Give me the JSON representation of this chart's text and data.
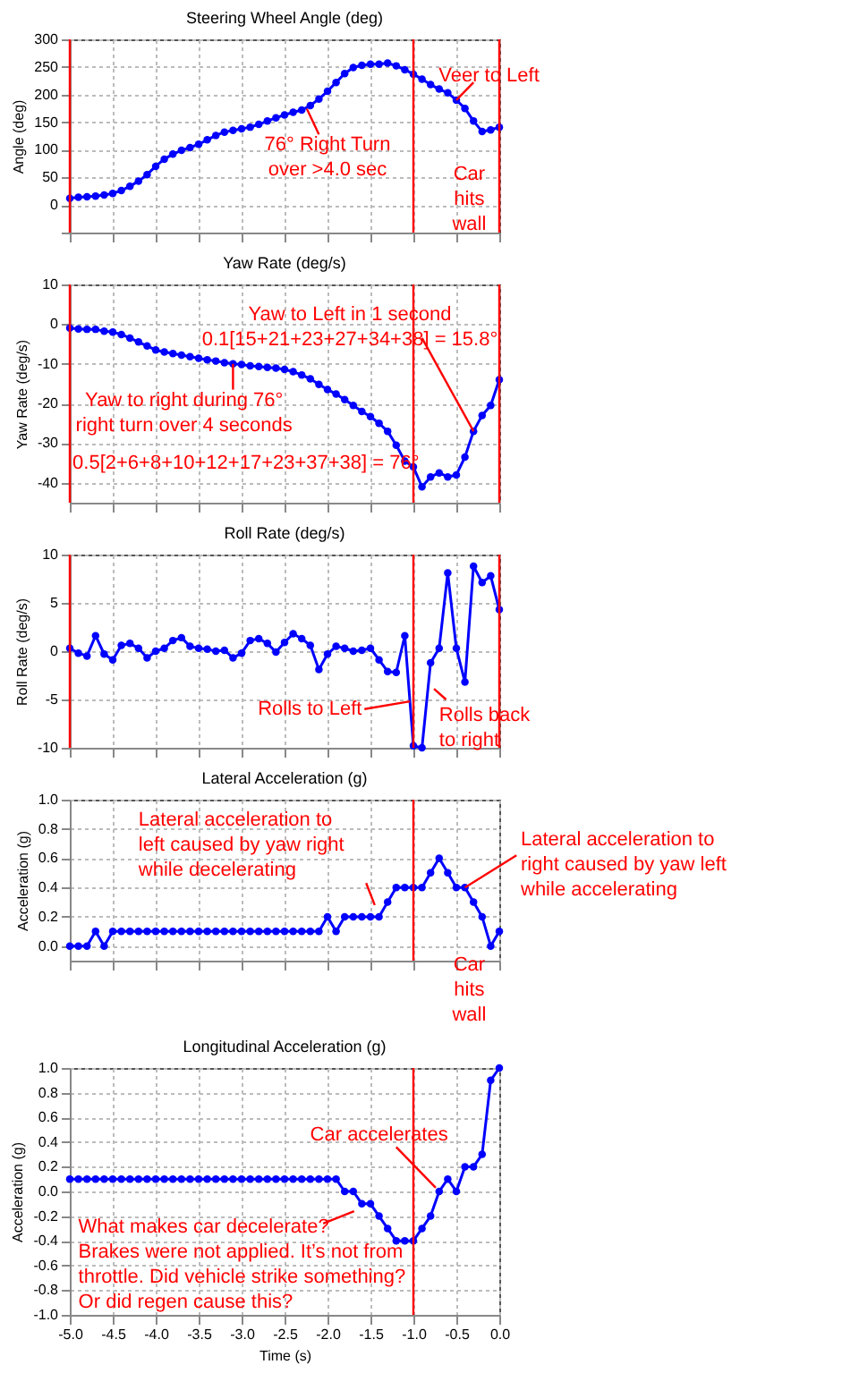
{
  "chart_data": [
    {
      "type": "line",
      "title": "Steering Wheel Angle (deg)",
      "ylabel": "Angle (deg)",
      "x": [
        -5.0,
        -4.9,
        -4.8,
        -4.7,
        -4.6,
        -4.5,
        -4.4,
        -4.3,
        -4.2,
        -4.1,
        -4.0,
        -3.9,
        -3.8,
        -3.7,
        -3.6,
        -3.5,
        -3.4,
        -3.3,
        -3.2,
        -3.1,
        -3.0,
        -2.9,
        -2.8,
        -2.7,
        -2.6,
        -2.5,
        -2.4,
        -2.3,
        -2.2,
        -2.1,
        -2.0,
        -1.9,
        -1.8,
        -1.7,
        -1.6,
        -1.5,
        -1.4,
        -1.3,
        -1.2,
        -1.1,
        -1.0,
        -0.9,
        -0.8,
        -0.7,
        -0.6,
        -0.5,
        -0.4,
        -0.3,
        -0.2,
        -0.1,
        0.0
      ],
      "series": [
        {
          "color": "#0000ff",
          "values": [
            12,
            14,
            15,
            16,
            18,
            21,
            26,
            34,
            43,
            55,
            70,
            83,
            92,
            99,
            104,
            110,
            118,
            126,
            132,
            135,
            138,
            141,
            146,
            152,
            158,
            163,
            168,
            172,
            180,
            192,
            206,
            222,
            238,
            249,
            253,
            255,
            255,
            257,
            252,
            245,
            237,
            228,
            218,
            210,
            203,
            190,
            175,
            152,
            133,
            136,
            141
          ]
        }
      ],
      "xlim": [
        -5,
        0
      ],
      "xticks": [
        -5,
        -4.5,
        -4,
        -3.5,
        -3,
        -2.5,
        -2,
        -1.5,
        -1,
        -0.5,
        0
      ],
      "ylim": [
        -50,
        300
      ],
      "yticks": [
        {
          "value": -50,
          "label": null
        },
        0,
        50,
        100,
        150,
        200,
        250,
        300
      ],
      "grid": true,
      "marker": "circle",
      "line_style": "solid",
      "tick_labels": "y",
      "ref_lines": [
        {
          "axis": "x",
          "value": -5,
          "color": "#ff0000"
        },
        {
          "axis": "x",
          "value": -1,
          "color": "#ff0000"
        },
        {
          "axis": "x",
          "value": 0,
          "color": "#ff0000"
        }
      ],
      "annotations": [
        {
          "text": "76° Right Turn\nover >4.0 sec",
          "x": -2.24,
          "y": 174
        },
        {
          "text": "Veer to Left",
          "x": -0.5,
          "y": 190
        },
        "Car\nhits\nwall"
      ]
    },
    {
      "type": "line",
      "title": "Yaw Rate (deg/s)",
      "ylabel": "Yaw Rate (deg/s)",
      "x": [
        -5.0,
        -4.9,
        -4.8,
        -4.7,
        -4.6,
        -4.5,
        -4.4,
        -4.3,
        -4.2,
        -4.1,
        -4.0,
        -3.9,
        -3.8,
        -3.7,
        -3.6,
        -3.5,
        -3.4,
        -3.3,
        -3.2,
        -3.1,
        -3.0,
        -2.9,
        -2.8,
        -2.7,
        -2.6,
        -2.5,
        -2.4,
        -2.3,
        -2.2,
        -2.1,
        -2.0,
        -1.9,
        -1.8,
        -1.7,
        -1.6,
        -1.5,
        -1.4,
        -1.3,
        -1.2,
        -1.1,
        -1.0,
        -0.9,
        -0.8,
        -0.7,
        -0.6,
        -0.5,
        -0.4,
        -0.3,
        -0.2,
        -0.1,
        0.0
      ],
      "series": [
        {
          "color": "#0000ff",
          "values": [
            -1,
            -1.2,
            -1.3,
            -1.3,
            -1.8,
            -2,
            -2.6,
            -3.5,
            -4.5,
            -5.5,
            -6.5,
            -7,
            -7.4,
            -7.8,
            -8.2,
            -8.6,
            -9,
            -9.3,
            -9.7,
            -10,
            -10.2,
            -10.5,
            -10.7,
            -10.9,
            -11.1,
            -11.4,
            -12,
            -12.8,
            -13.8,
            -15.2,
            -16.5,
            -17.6,
            -19,
            -20.5,
            -22,
            -23.3,
            -25,
            -27,
            -30.5,
            -34.5,
            -36,
            -41,
            -38.5,
            -37.5,
            -38.5,
            -38,
            -33.5,
            -27,
            -23,
            -20.5,
            -14
          ]
        }
      ],
      "xlim": [
        -5,
        0
      ],
      "xticks": [
        -5,
        -4.5,
        -4,
        -3.5,
        -3,
        -2.5,
        -2,
        -1.5,
        -1,
        -0.5,
        0
      ],
      "ylim": [
        -45,
        10
      ],
      "yticks": [
        -40,
        -30,
        -20,
        -10,
        0,
        10
      ],
      "grid": true,
      "marker": "circle",
      "line_style": "solid",
      "tick_labels": "y",
      "ref_lines": [
        {
          "axis": "x",
          "value": -5,
          "color": "#ff0000"
        },
        {
          "axis": "x",
          "value": -1,
          "color": "#ff0000"
        },
        {
          "axis": "x",
          "value": 0,
          "color": "#ff0000"
        }
      ],
      "annotations": [
        {
          "text": "Yaw to Left in 1 second\n0.1[15+21+23+27+34+38] = 15.8°",
          "x": -0.3,
          "y": -27
        },
        {
          "text": "Yaw to right during 76°\nright turn over 4 seconds",
          "x": -3.1,
          "y": -10
        },
        "0.5[2+6+8+10+12+17+23+37+38] = 76°"
      ]
    },
    {
      "type": "line",
      "title": "Roll Rate (deg/s)",
      "ylabel": "Roll Rate (deg/s)",
      "x": [
        -5.0,
        -4.9,
        -4.8,
        -4.7,
        -4.6,
        -4.5,
        -4.4,
        -4.3,
        -4.2,
        -4.1,
        -4.0,
        -3.9,
        -3.8,
        -3.7,
        -3.6,
        -3.5,
        -3.4,
        -3.3,
        -3.2,
        -3.1,
        -3.0,
        -2.9,
        -2.8,
        -2.7,
        -2.6,
        -2.5,
        -2.4,
        -2.3,
        -2.2,
        -2.1,
        -2.0,
        -1.9,
        -1.8,
        -1.7,
        -1.6,
        -1.5,
        -1.4,
        -1.3,
        -1.2,
        -1.1,
        -1.0,
        -0.9,
        -0.8,
        -0.7,
        -0.6,
        -0.5,
        -0.4,
        -0.3,
        -0.2,
        -0.1,
        0.0
      ],
      "series": [
        {
          "color": "#0000ff",
          "values": [
            0.3,
            -0.2,
            -0.5,
            1.6,
            -0.3,
            -0.9,
            0.6,
            0.8,
            0.3,
            -0.7,
            0,
            0.3,
            1.1,
            1.4,
            0.5,
            0.3,
            0.2,
            0,
            0.1,
            -0.7,
            -0.2,
            1.1,
            1.3,
            0.8,
            -0.1,
            0.9,
            1.8,
            1.3,
            0.6,
            -1.9,
            -0.3,
            0.5,
            0.3,
            0,
            0.1,
            0.3,
            -0.9,
            -2.1,
            -2.2,
            1.6,
            -9.8,
            -10.0,
            -1.2,
            0.3,
            8.1,
            0.3,
            -3.2,
            8.8,
            7.1,
            7.8,
            4.3
          ]
        }
      ],
      "xlim": [
        -5,
        0
      ],
      "xticks": [
        -5,
        -4.5,
        -4,
        -3.5,
        -3,
        -2.5,
        -2,
        -1.5,
        -1,
        -0.5,
        0
      ],
      "ylim": [
        -10,
        10
      ],
      "yticks": [
        -10,
        -5,
        0,
        5,
        10
      ],
      "grid": true,
      "marker": "circle",
      "line_style": "solid",
      "tick_labels": "y",
      "ref_lines": [
        {
          "axis": "x",
          "value": -5,
          "color": "#ff0000"
        },
        {
          "axis": "x",
          "value": -1,
          "color": "#ff0000"
        },
        {
          "axis": "x",
          "value": 0,
          "color": "#ff0000"
        }
      ],
      "annotations": [
        {
          "text": "Rolls to Left",
          "x": -1.04,
          "y": -5.2
        },
        {
          "text": "Rolls back\nto right",
          "x": -0.76,
          "y": -3.9
        }
      ]
    },
    {
      "type": "line",
      "title": "Lateral Acceleration (g)",
      "ylabel": "Acceleration (g)",
      "x": [
        -5.0,
        -4.9,
        -4.8,
        -4.7,
        -4.6,
        -4.5,
        -4.4,
        -4.3,
        -4.2,
        -4.1,
        -4.0,
        -3.9,
        -3.8,
        -3.7,
        -3.6,
        -3.5,
        -3.4,
        -3.3,
        -3.2,
        -3.1,
        -3.0,
        -2.9,
        -2.8,
        -2.7,
        -2.6,
        -2.5,
        -2.4,
        -2.3,
        -2.2,
        -2.1,
        -2.0,
        -1.9,
        -1.8,
        -1.7,
        -1.6,
        -1.5,
        -1.4,
        -1.3,
        -1.2,
        -1.1,
        -1.0,
        -0.9,
        -0.8,
        -0.7,
        -0.6,
        -0.5,
        -0.4,
        -0.3,
        -0.2,
        -0.1,
        0.0
      ],
      "series": [
        {
          "color": "#0000ff",
          "values": [
            0,
            0,
            0,
            0.1,
            0,
            0.1,
            0.1,
            0.1,
            0.1,
            0.1,
            0.1,
            0.1,
            0.1,
            0.1,
            0.1,
            0.1,
            0.1,
            0.1,
            0.1,
            0.1,
            0.1,
            0.1,
            0.1,
            0.1,
            0.1,
            0.1,
            0.1,
            0.1,
            0.1,
            0.1,
            0.2,
            0.1,
            0.2,
            0.2,
            0.2,
            0.2,
            0.2,
            0.3,
            0.4,
            0.4,
            0.4,
            0.4,
            0.5,
            0.6,
            0.5,
            0.4,
            0.4,
            0.3,
            0.2,
            0.0,
            0.1
          ]
        }
      ],
      "xlim": [
        -5,
        0
      ],
      "xticks": [
        -5,
        -4.5,
        -4,
        -3.5,
        -3,
        -2.5,
        -2,
        -1.5,
        -1,
        -0.5,
        0
      ],
      "ylim": [
        -0.1,
        1.0
      ],
      "yticks": [
        {
          "value": 0,
          "label": "0.0"
        },
        0.2,
        0.4,
        0.6,
        0.8,
        {
          "value": 1,
          "label": "1.0"
        }
      ],
      "grid": true,
      "marker": "circle",
      "line_style": "solid",
      "tick_labels": "y",
      "ref_lines": [
        {
          "axis": "x",
          "value": -1,
          "color": "#ff0000"
        }
      ],
      "annotations": [
        {
          "text": "Lateral acceleration to\nleft caused by yaw right\nwhile decelerating",
          "x": -1.45,
          "y": 0.28
        },
        {
          "text": "Lateral acceleration to\nright caused by yaw left\nwhile accelerating",
          "x": -0.4,
          "y": 0.4
        },
        "Car\nhits\nwall"
      ]
    },
    {
      "type": "line",
      "title": "Longitudinal Acceleration (g)",
      "xlabel": "Time (s)",
      "ylabel": "Acceleration (g)",
      "x": [
        -5.0,
        -4.9,
        -4.8,
        -4.7,
        -4.6,
        -4.5,
        -4.4,
        -4.3,
        -4.2,
        -4.1,
        -4.0,
        -3.9,
        -3.8,
        -3.7,
        -3.6,
        -3.5,
        -3.4,
        -3.3,
        -3.2,
        -3.1,
        -3.0,
        -2.9,
        -2.8,
        -2.7,
        -2.6,
        -2.5,
        -2.4,
        -2.3,
        -2.2,
        -2.1,
        -2.0,
        -1.9,
        -1.8,
        -1.7,
        -1.6,
        -1.5,
        -1.4,
        -1.3,
        -1.2,
        -1.1,
        -1.0,
        -0.9,
        -0.8,
        -0.7,
        -0.6,
        -0.5,
        -0.4,
        -0.3,
        -0.2,
        -0.1,
        0.0
      ],
      "series": [
        {
          "color": "#0000ff",
          "values": [
            0.1,
            0.1,
            0.1,
            0.1,
            0.1,
            0.1,
            0.1,
            0.1,
            0.1,
            0.1,
            0.1,
            0.1,
            0.1,
            0.1,
            0.1,
            0.1,
            0.1,
            0.1,
            0.1,
            0.1,
            0.1,
            0.1,
            0.1,
            0.1,
            0.1,
            0.1,
            0.1,
            0.1,
            0.1,
            0.1,
            0.1,
            0.1,
            0,
            0,
            -0.1,
            -0.1,
            -0.2,
            -0.3,
            -0.4,
            -0.4,
            -0.4,
            -0.3,
            -0.2,
            0,
            0.1,
            0,
            0.2,
            0.2,
            0.3,
            0.9,
            1.0
          ]
        }
      ],
      "xlim": [
        -5,
        0
      ],
      "xticks": [
        {
          "value": -5,
          "label": "-5.0"
        },
        -4.5,
        {
          "value": -4,
          "label": "-4.0"
        },
        -3.5,
        {
          "value": -3,
          "label": "-3.0"
        },
        -2.5,
        {
          "value": -2,
          "label": "-2.0"
        },
        -1.5,
        {
          "value": -1,
          "label": "-1.0"
        },
        -0.5,
        {
          "value": 0,
          "label": "0.0"
        }
      ],
      "ylim": [
        -1.0,
        1.0
      ],
      "yticks": [
        {
          "value": -1,
          "label": "-1.0"
        },
        -0.8,
        -0.6,
        -0.4,
        -0.2,
        {
          "value": 0,
          "label": "0.0"
        },
        0.2,
        0.4,
        0.6,
        0.8,
        {
          "value": 1,
          "label": "1.0"
        }
      ],
      "grid": true,
      "marker": "circle",
      "line_style": "solid",
      "ref_lines": [
        {
          "axis": "x",
          "value": -1,
          "color": "#ff0000"
        }
      ],
      "annotations": [
        {
          "text": "Car accelerates",
          "x": -0.74,
          "y": 0.03
        },
        {
          "text": "What makes car decelerate?\nBrakes were not applied. It’s not from\nthrottle.  Did vehicle strike something?\nOr did regen cause this?",
          "x": -1.69,
          "y": -0.16
        }
      ]
    }
  ]
}
